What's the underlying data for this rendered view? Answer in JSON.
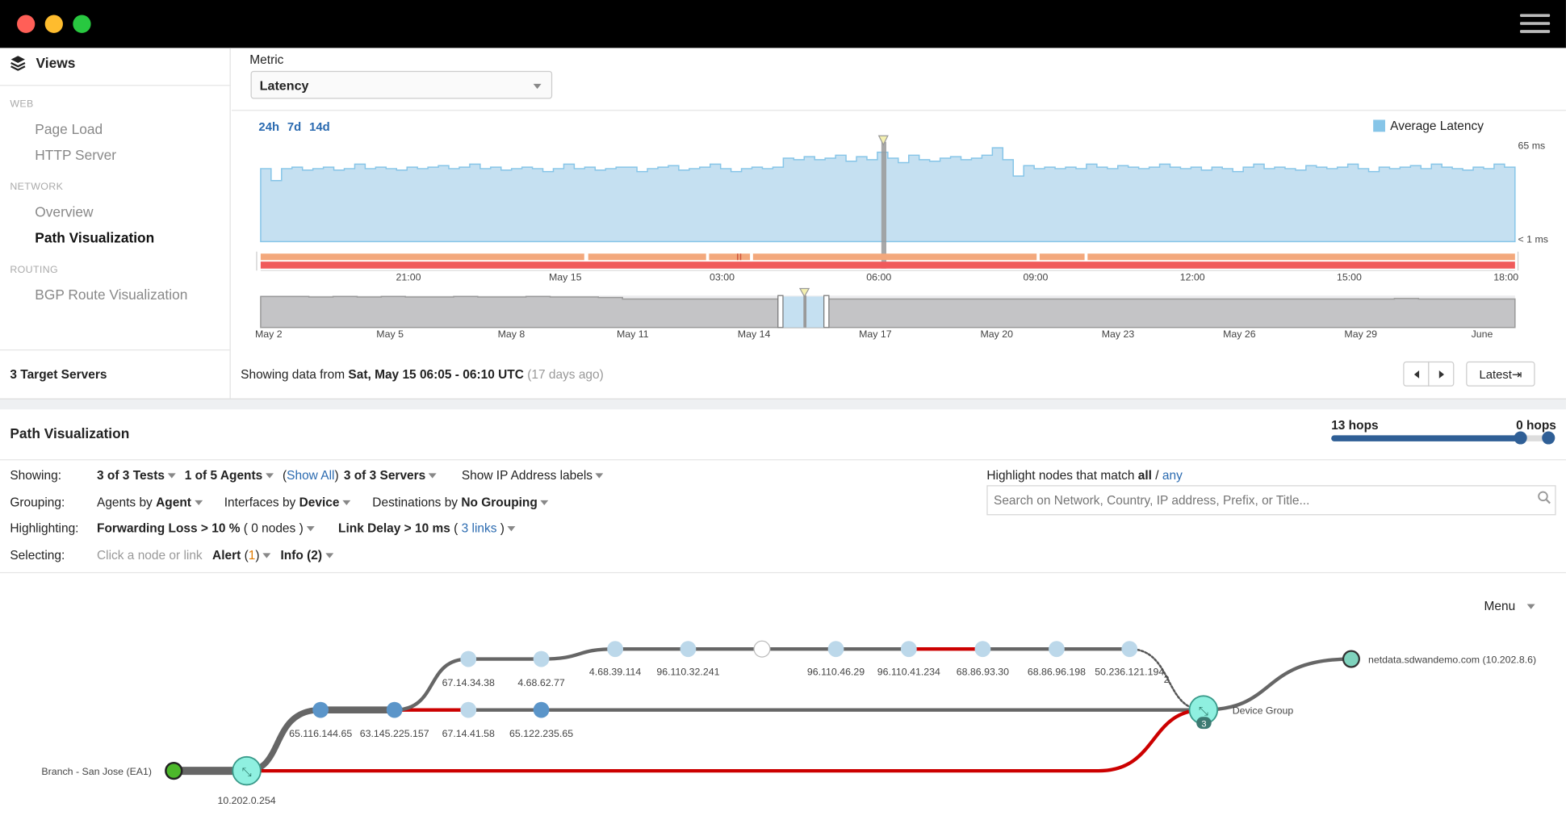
{
  "window": {
    "controls": [
      "close",
      "minimize",
      "maximize"
    ],
    "menu_icon": "hamburger-icon"
  },
  "sidebar": {
    "title": "Views",
    "title_icon": "layers-icon",
    "sections": [
      {
        "label": "WEB",
        "items": [
          {
            "label": "Page Load"
          },
          {
            "label": "HTTP Server"
          }
        ]
      },
      {
        "label": "NETWORK",
        "items": [
          {
            "label": "Overview"
          },
          {
            "label": "Path Visualization",
            "active": true
          }
        ]
      },
      {
        "label": "ROUTING",
        "items": [
          {
            "label": "BGP Route Visualization"
          }
        ]
      }
    ],
    "footer": "3 Target Servers"
  },
  "metric": {
    "label": "Metric",
    "value": "Latency"
  },
  "timeline": {
    "ranges": [
      "24h",
      "7d",
      "14d"
    ],
    "status_prefix": "Showing data from ",
    "status_range": "Sat, May 15 06:05 - 06:10 UTC",
    "status_ago": "(17 days ago)",
    "latest_label": "Latest⇥"
  },
  "chart_data": [
    {
      "type": "area",
      "legend": "Average Latency",
      "legend_placement": "top-right",
      "color": "#86c5e8",
      "ylim_labels": [
        "65 ms",
        "< 1 ms"
      ],
      "ylim": [
        0,
        65
      ],
      "x_ticks": [
        "21:00",
        "May 15",
        "03:00",
        "06:00",
        "09:00",
        "12:00",
        "15:00",
        "18:00"
      ],
      "selected": "06:00",
      "values": [
        49,
        41,
        49,
        50,
        48,
        49,
        50,
        48,
        49,
        52,
        49,
        50,
        49,
        48,
        50,
        49,
        50,
        51,
        49,
        50,
        52,
        49,
        50,
        48,
        49,
        50,
        49,
        47,
        49,
        52,
        49,
        50,
        48,
        49,
        50,
        50,
        47,
        49,
        50,
        51,
        48,
        49,
        50,
        52,
        49,
        47,
        49,
        50,
        49,
        50,
        56,
        55,
        57,
        55,
        56,
        58,
        54,
        57,
        55,
        60,
        56,
        53,
        58,
        55,
        54,
        56,
        57,
        55,
        56,
        58,
        63,
        55,
        44,
        51,
        49,
        50,
        49,
        50,
        49,
        52,
        50,
        49,
        51,
        50,
        49,
        50,
        52,
        50,
        49,
        50,
        48,
        50,
        49,
        47,
        50,
        52,
        49,
        50,
        49,
        48,
        51,
        50,
        49,
        50,
        52,
        49,
        47,
        50,
        49,
        50,
        51,
        49,
        52,
        50,
        49,
        48,
        50,
        49,
        52,
        50
      ]
    },
    {
      "type": "area",
      "color": "#c4c4c6",
      "ylim": [
        0,
        65
      ],
      "x_ticks": [
        "May 2",
        "May 5",
        "May 8",
        "May 11",
        "May 14",
        "May 17",
        "May 20",
        "May 23",
        "May 26",
        "May 29",
        "June"
      ],
      "selection": [
        "May 14",
        "May 15"
      ],
      "values": [
        63,
        63,
        62,
        63,
        62,
        63,
        62,
        62,
        63,
        62,
        62,
        63,
        62,
        62,
        61,
        58,
        58,
        58,
        58,
        58,
        58,
        58,
        58,
        58,
        58,
        58,
        58,
        58,
        58,
        58,
        58,
        58,
        58,
        58,
        58,
        58,
        58,
        58,
        58,
        58,
        58,
        58,
        58,
        58,
        58,
        58,
        58,
        59,
        58,
        58,
        58,
        58
      ]
    }
  ],
  "path_viz": {
    "title": "Path Visualization",
    "hops_left": "13 hops",
    "hops_right": "0 hops",
    "hops_value": 13,
    "rows": {
      "showing_label": "Showing:",
      "tests": "3 of 3 Tests",
      "agents": "1 of 5 Agents",
      "show_all": "Show All",
      "servers": "3 of 3 Servers",
      "ip_labels": "Show IP Address labels",
      "grouping_label": "Grouping:",
      "g1_pre": "Agents by ",
      "g1": "Agent",
      "g2_pre": "Interfaces by ",
      "g2": "Device",
      "g3_pre": "Destinations by ",
      "g3": "No Grouping",
      "highlight_label": "Highlighting:",
      "h1": "Forwarding Loss > 10 %",
      "h1_count": "0 nodes",
      "h2": "Link Delay > 10 ms",
      "h2_count": "3 links",
      "selecting_label": "Selecting:",
      "select_hint": "Click a node or link",
      "alert": "Alert",
      "alert_count": "1",
      "info": "Info (2)"
    },
    "match": {
      "prefix": "Highlight nodes that match ",
      "all": "all",
      "sep": " / ",
      "any": "any",
      "placeholder": "Search on Network, Country, IP address, Prefix, or Title..."
    },
    "menu": "Menu",
    "nodes": {
      "agent": "Branch - San Jose (EA1)",
      "router": "10.202.0.254",
      "a1": "65.116.144.65",
      "a2": "63.145.225.157",
      "a3": "67.14.41.58",
      "a4": "65.122.235.65",
      "b1": "67.14.34.38",
      "b2": "4.68.62.77",
      "c1": "4.68.39.114",
      "c2": "96.110.32.241",
      "c4": "96.110.46.29",
      "c5": "96.110.41.234",
      "c6": "68.86.93.30",
      "c7": "68.86.96.198",
      "c8": "50.236.121.194",
      "group": "Device Group",
      "group_count": "3",
      "dashed_count": "2",
      "dest": "netdata.sdwandemo.com (10.202.8.6)"
    }
  }
}
